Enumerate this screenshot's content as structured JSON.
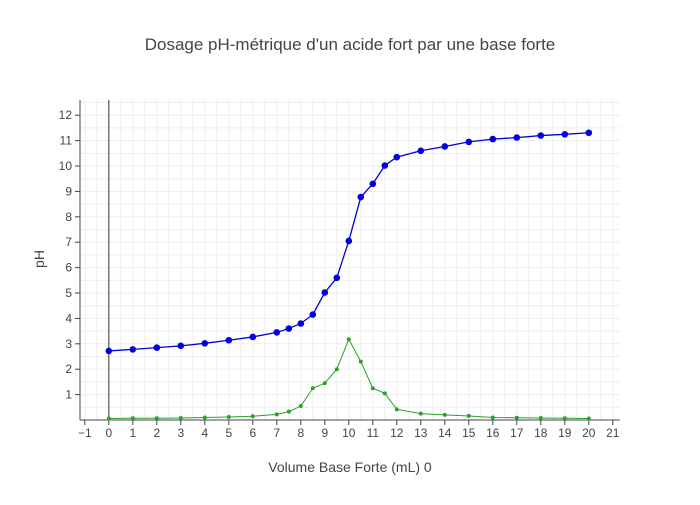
{
  "chart_data": {
    "type": "line",
    "title": "Dosage pH-métrique d'un acide fort par une base forte",
    "xlabel": "Volume Base Forte (mL) 0",
    "ylabel": "pH",
    "xlim": [
      -1.2,
      21.3
    ],
    "ylim": [
      0,
      12.6
    ],
    "grid": true,
    "legend": "none",
    "x_ticks": [
      -1,
      0,
      1,
      2,
      3,
      4,
      5,
      6,
      7,
      8,
      9,
      10,
      11,
      12,
      13,
      14,
      15,
      16,
      17,
      18,
      19,
      20,
      21
    ],
    "y_ticks": [
      1,
      2,
      3,
      4,
      5,
      6,
      7,
      8,
      9,
      10,
      11,
      12
    ],
    "series": [
      {
        "color": "#0000dd",
        "marker": "circle",
        "x": [
          0,
          1,
          2,
          3,
          4,
          5,
          6,
          7,
          7.5,
          8,
          8.5,
          9,
          9.5,
          10,
          10.5,
          11,
          11.5,
          12,
          13,
          14,
          15,
          16,
          17,
          18,
          19,
          20
        ],
        "y": [
          2.72,
          2.78,
          2.85,
          2.92,
          3.02,
          3.14,
          3.27,
          3.45,
          3.6,
          3.8,
          4.15,
          5.02,
          5.6,
          7.05,
          8.78,
          9.3,
          10.02,
          10.35,
          10.6,
          10.77,
          10.95,
          11.06,
          11.12,
          11.2,
          11.25,
          11.31
        ]
      },
      {
        "color": "#2ca02c",
        "marker": "small-circle",
        "x": [
          0,
          1,
          2,
          3,
          4,
          5,
          6,
          7,
          7.5,
          8,
          8.5,
          9,
          9.5,
          10,
          10.5,
          11,
          11.5,
          12,
          13,
          14,
          15,
          16,
          17,
          18,
          19,
          20
        ],
        "y": [
          0.06,
          0.07,
          0.07,
          0.08,
          0.1,
          0.12,
          0.15,
          0.22,
          0.33,
          0.55,
          1.25,
          1.45,
          2.0,
          3.18,
          2.3,
          1.25,
          1.05,
          0.42,
          0.25,
          0.2,
          0.16,
          0.1,
          0.09,
          0.08,
          0.07,
          0.06
        ]
      }
    ]
  }
}
